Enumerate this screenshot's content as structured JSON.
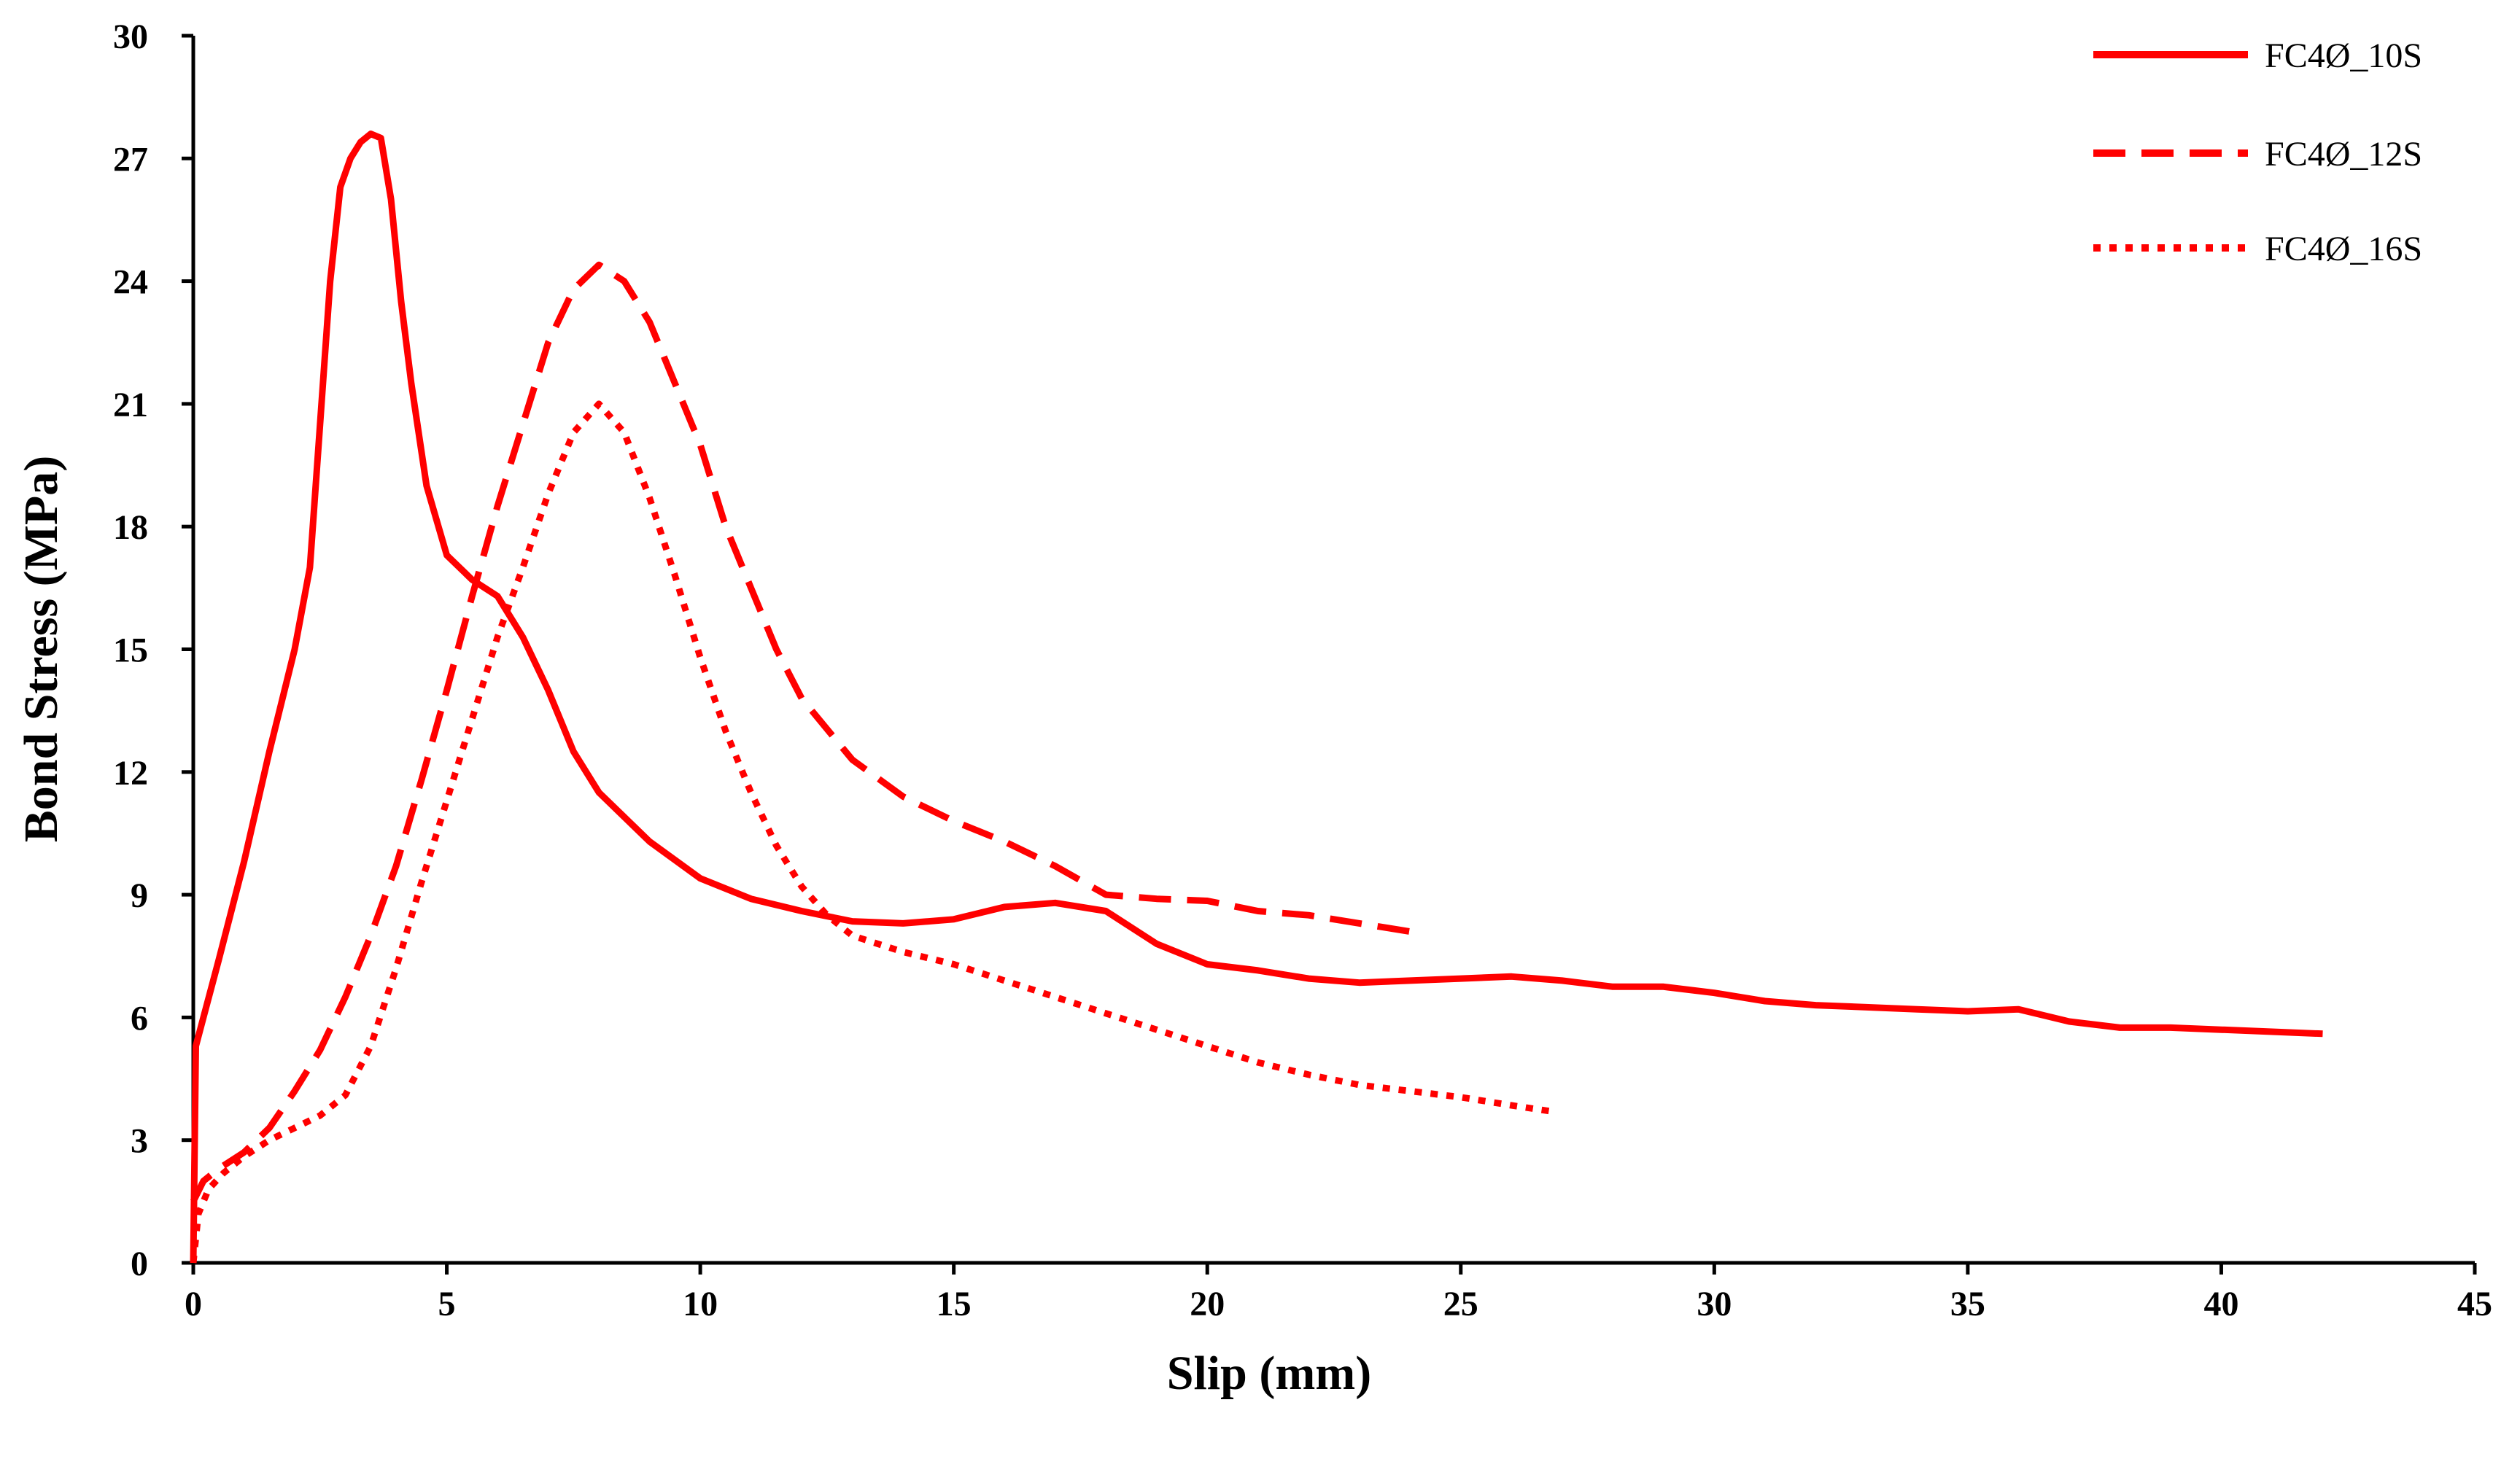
{
  "chart_data": {
    "type": "line",
    "title": "",
    "xlabel": "Slip (mm)",
    "ylabel": "Bond Stress (MPa)",
    "xlim": [
      0,
      45
    ],
    "ylim": [
      0,
      30
    ],
    "xticks": [
      0,
      5,
      10,
      15,
      20,
      25,
      30,
      35,
      40,
      45
    ],
    "yticks": [
      0,
      3,
      6,
      9,
      12,
      15,
      18,
      21,
      24,
      27,
      30
    ],
    "grid": false,
    "legend_position": "top-right",
    "color": "#ff0000",
    "series": [
      {
        "name": "FC4Ø_10S",
        "style": "solid",
        "x": [
          0,
          0.05,
          0.2,
          0.5,
          1,
          1.5,
          2,
          2.3,
          2.5,
          2.7,
          2.9,
          3.1,
          3.3,
          3.5,
          3.7,
          3.9,
          4.1,
          4.3,
          4.6,
          5,
          5.5,
          6,
          6.5,
          7,
          7.5,
          8,
          9,
          10,
          11,
          12,
          13,
          14,
          15,
          16,
          17,
          18,
          19,
          20,
          21,
          22,
          23,
          24,
          25,
          26,
          27,
          28,
          29,
          30,
          31,
          32,
          33,
          34,
          35,
          36,
          37,
          38,
          39,
          40,
          41,
          42
        ],
        "y": [
          0,
          5.3,
          6.0,
          7.4,
          9.8,
          12.5,
          15.0,
          17.0,
          20.5,
          24.0,
          26.3,
          27.0,
          27.4,
          27.6,
          27.5,
          26.0,
          23.5,
          21.5,
          19.0,
          17.3,
          16.7,
          16.3,
          15.3,
          14.0,
          12.5,
          11.5,
          10.3,
          9.4,
          8.9,
          8.6,
          8.35,
          8.3,
          8.4,
          8.7,
          8.8,
          8.6,
          7.8,
          7.3,
          7.15,
          6.95,
          6.85,
          6.9,
          6.95,
          7.0,
          6.9,
          6.75,
          6.75,
          6.6,
          6.4,
          6.3,
          6.25,
          6.2,
          6.15,
          6.2,
          5.9,
          5.75,
          5.75,
          5.7,
          5.65,
          5.6
        ]
      },
      {
        "name": "FC4Ø_12S",
        "style": "dashed",
        "x": [
          0,
          0.2,
          0.5,
          1,
          1.5,
          2,
          2.5,
          3,
          3.5,
          4,
          4.5,
          5,
          5.5,
          6,
          6.5,
          7,
          7.5,
          8,
          8.5,
          9,
          9.5,
          10,
          10.5,
          11,
          11.5,
          12,
          13,
          14,
          15,
          16,
          17,
          18,
          19,
          20,
          21,
          22,
          23,
          24
        ],
        "y": [
          1.5,
          2.0,
          2.3,
          2.7,
          3.3,
          4.2,
          5.2,
          6.5,
          8.0,
          9.7,
          11.8,
          14.0,
          16.3,
          18.5,
          20.5,
          22.5,
          23.8,
          24.4,
          24.0,
          23.0,
          21.5,
          20.0,
          18.0,
          16.5,
          15.0,
          13.8,
          12.3,
          11.4,
          10.8,
          10.3,
          9.7,
          9.0,
          8.9,
          8.85,
          8.6,
          8.5,
          8.3,
          8.1
        ]
      },
      {
        "name": "FC4Ø_16S",
        "style": "dotted",
        "x": [
          0,
          0.1,
          0.3,
          0.6,
          1,
          1.5,
          2,
          2.5,
          3,
          3.5,
          4,
          4.5,
          5,
          5.5,
          6,
          6.5,
          7,
          7.5,
          8,
          8.5,
          9,
          9.5,
          10,
          10.5,
          11,
          11.5,
          12,
          12.5,
          13,
          14,
          15,
          16,
          17,
          18,
          19,
          20,
          21,
          22,
          23,
          24,
          25,
          26,
          26.8
        ],
        "y": [
          0,
          1.2,
          1.8,
          2.2,
          2.6,
          3.0,
          3.3,
          3.6,
          4.1,
          5.3,
          7.2,
          9.3,
          11.3,
          13.3,
          15.3,
          17.0,
          18.8,
          20.3,
          21.0,
          20.3,
          18.7,
          16.8,
          14.8,
          13.0,
          11.5,
          10.2,
          9.2,
          8.5,
          8.0,
          7.6,
          7.3,
          6.9,
          6.5,
          6.1,
          5.7,
          5.3,
          4.9,
          4.6,
          4.35,
          4.2,
          4.05,
          3.85,
          3.7
        ]
      }
    ]
  }
}
